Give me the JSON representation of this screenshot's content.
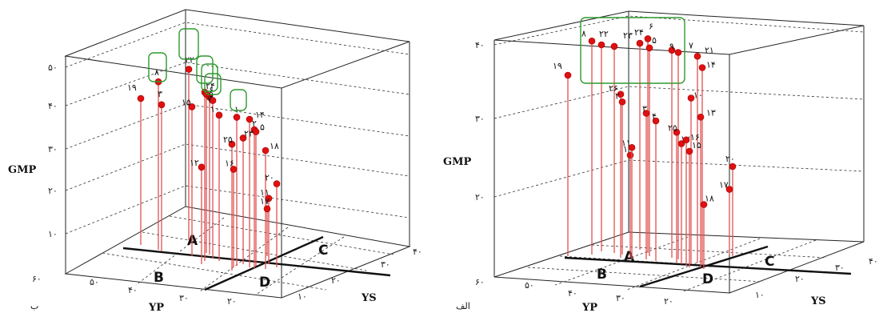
{
  "charts": [
    {
      "id": "left",
      "caption": "ب",
      "zlabel": "GMP",
      "xlabel": "YP",
      "ylabel": "YS",
      "z_ticks": [
        "۱۰",
        "۲۰",
        "۳۰",
        "۴۰",
        "۵۰"
      ],
      "x_ticks": [
        "۶۰",
        "۵۰",
        "۴۰",
        "۳۰",
        "۲۰"
      ],
      "y_ticks": [
        "۱۰",
        "۲۰",
        "۳۰",
        "۴۰"
      ],
      "quadrants": [
        "A",
        "B",
        "C",
        "D"
      ],
      "point_labels": [
        "۲۲",
        "۸",
        "۱۹",
        "۳",
        "۲۴",
        "۶",
        "۵",
        "۷",
        "۱۵",
        "۱۰",
        "۱",
        "۱۴",
        "۲",
        "۵",
        "۲۳",
        "۲۵",
        "۱۸",
        "۱۲",
        "۱۶",
        "۲۰",
        "۱۱",
        "۱۷"
      ]
    },
    {
      "id": "right",
      "caption": "الف",
      "zlabel": "GMP",
      "xlabel": "YP",
      "ylabel": "YS",
      "z_ticks": [
        "۲۰",
        "۳۰",
        "۴۰"
      ],
      "x_ticks": [
        "۶۰",
        "۵۰",
        "۴۰",
        "۳۰",
        "۲۰"
      ],
      "y_ticks": [
        "۱۰",
        "۲۰",
        "۳۰",
        "۴۰"
      ],
      "quadrants": [
        "A",
        "B",
        "C",
        "D"
      ],
      "point_labels": [
        "۸",
        "۲۲",
        "۲۳",
        "۲۴",
        "۶",
        "۵",
        "۷",
        "۱۹",
        "۹",
        "۲۱",
        "۱۴",
        "۲۶",
        "۲",
        "۱۰",
        "۳",
        "۴",
        "۱۳",
        "۲۵",
        "۱۲",
        "۱۶",
        "۱۵",
        "۱",
        "۲۰",
        "۱۷",
        "۱۱",
        "۱۸"
      ]
    }
  ],
  "chart_data": [
    {
      "type": "scatter",
      "title": "",
      "xlabel": "YP",
      "ylabel": "YS",
      "zlabel": "GMP",
      "zlim": [
        10,
        50
      ],
      "xlim": [
        20,
        60
      ],
      "ylim": [
        10,
        40
      ],
      "grid": true,
      "quadrant_labels": [
        "A",
        "B",
        "C",
        "D"
      ],
      "highlighted_genotypes": [
        "۲۲",
        "۸",
        "۲۴",
        "۶",
        "۵",
        "۷",
        "۱"
      ],
      "points": [
        {
          "label": "۲۲",
          "z": 49.5
        },
        {
          "label": "۸",
          "z": 46.5
        },
        {
          "label": "۱۹",
          "z": 42.5
        },
        {
          "label": "۳",
          "z": 41.0
        },
        {
          "label": "۲۴",
          "z": 44.0
        },
        {
          "label": "۶",
          "z": 43.5
        },
        {
          "label": "۵",
          "z": 42.8
        },
        {
          "label": "۷",
          "z": 42.0
        },
        {
          "label": "۱۵",
          "z": 40.5
        },
        {
          "label": "۱۰",
          "z": 38.5
        },
        {
          "label": "۱",
          "z": 38.0
        },
        {
          "label": "۱۴",
          "z": 37.5
        },
        {
          "label": "۲",
          "z": 35.0
        },
        {
          "label": "۵",
          "z": 34.5
        },
        {
          "label": "۲۳",
          "z": 33.0
        },
        {
          "label": "۲۵",
          "z": 31.5
        },
        {
          "label": "۱۸",
          "z": 30.0
        },
        {
          "label": "۱۲",
          "z": 26.0
        },
        {
          "label": "۱۶",
          "z": 25.5
        },
        {
          "label": "۲۰",
          "z": 22.0
        },
        {
          "label": "۱۱",
          "z": 18.5
        },
        {
          "label": "۱۷",
          "z": 16.0
        }
      ]
    },
    {
      "type": "scatter",
      "title": "",
      "xlabel": "YP",
      "ylabel": "YS",
      "zlabel": "GMP",
      "zlim": [
        15,
        40
      ],
      "xlim": [
        20,
        60
      ],
      "ylim": [
        10,
        40
      ],
      "grid": true,
      "quadrant_labels": [
        "A",
        "B",
        "C",
        "D"
      ],
      "highlighted_genotypes": [
        "۸",
        "۲۲",
        "۲۳",
        "۲۴",
        "۶",
        "۵",
        "۷",
        "۹",
        "۲۱"
      ],
      "points": [
        {
          "label": "۸",
          "z": 40.5
        },
        {
          "label": "۲۲",
          "z": 40.0
        },
        {
          "label": "۲۳",
          "z": 39.8
        },
        {
          "label": "۲۴",
          "z": 40.2
        },
        {
          "label": "۶",
          "z": 40.8
        },
        {
          "label": "۵",
          "z": 39.6
        },
        {
          "label": "۷",
          "z": 39.3
        },
        {
          "label": "۱۹",
          "z": 36.0
        },
        {
          "label": "۹",
          "z": 39.0
        },
        {
          "label": "۲۱",
          "z": 38.5
        },
        {
          "label": "۱۴",
          "z": 37.0
        },
        {
          "label": "۲۶",
          "z": 33.5
        },
        {
          "label": "۲",
          "z": 32.5
        },
        {
          "label": "۱۰",
          "z": 33.0
        },
        {
          "label": "۳",
          "z": 31.0
        },
        {
          "label": "۴",
          "z": 30.0
        },
        {
          "label": "۱۳",
          "z": 30.5
        },
        {
          "label": "۲۵",
          "z": 28.5
        },
        {
          "label": "۱۲",
          "z": 27.0
        },
        {
          "label": "۱۶",
          "z": 27.5
        },
        {
          "label": "۱۵",
          "z": 26.0
        },
        {
          "label": "۱",
          "z": 25.5
        },
        {
          "label": "۲۰",
          "z": 24.0
        },
        {
          "label": "۱۷",
          "z": 21.0
        },
        {
          "label": "۱۱",
          "z": 26.5
        },
        {
          "label": "۱۸",
          "z": 19.0
        }
      ]
    }
  ]
}
